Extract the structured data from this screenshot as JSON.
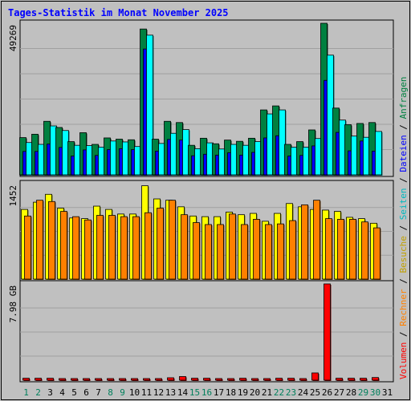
{
  "title": "Tages-Statistik im Monat November 2025",
  "chart_data": [
    {
      "type": "bar",
      "panel": "hits-files-pages",
      "categories": [
        "1",
        "2",
        "3",
        "4",
        "5",
        "6",
        "7",
        "8",
        "9",
        "10",
        "11",
        "12",
        "13",
        "14",
        "15",
        "16",
        "17",
        "18",
        "19",
        "20",
        "21",
        "22",
        "23",
        "24",
        "25",
        "26",
        "27",
        "28",
        "29",
        "30",
        "31"
      ],
      "max_label": "49269",
      "ylim": [
        0,
        49269
      ],
      "series": [
        {
          "name": "Anfragen",
          "color": "#008040",
          "values": [
            12100,
            13200,
            17400,
            15400,
            10800,
            13700,
            9900,
            12000,
            11600,
            11400,
            47400,
            11600,
            17400,
            17000,
            9600,
            11900,
            10100,
            11300,
            10900,
            11900,
            21100,
            22400,
            9900,
            10800,
            14600,
            49269,
            21700,
            16300,
            16700,
            17000,
            null
          ]
        },
        {
          "name": "Dateien",
          "color": "#0000ff",
          "values": [
            7600,
            7600,
            10000,
            8900,
            6100,
            8100,
            6300,
            8200,
            8500,
            8200,
            40900,
            7700,
            11500,
            11300,
            6200,
            6700,
            6400,
            7200,
            6400,
            7300,
            12000,
            12700,
            6100,
            6300,
            9400,
            30700,
            13800,
            7800,
            11000,
            7700,
            null
          ]
        },
        {
          "name": "Seiten",
          "color": "#00ffff",
          "values": [
            10500,
            9900,
            15900,
            14400,
            9600,
            9500,
            9000,
            11000,
            10700,
            9200,
            45400,
            10200,
            13500,
            14700,
            8500,
            10400,
            8400,
            9900,
            9600,
            10800,
            19800,
            21100,
            9000,
            9000,
            11800,
            38900,
            17800,
            12600,
            12200,
            14100,
            null
          ]
        }
      ]
    },
    {
      "type": "bar",
      "panel": "visits-hosts",
      "categories": [
        "1",
        "2",
        "3",
        "4",
        "5",
        "6",
        "7",
        "8",
        "9",
        "10",
        "11",
        "12",
        "13",
        "14",
        "15",
        "16",
        "17",
        "18",
        "19",
        "20",
        "21",
        "22",
        "23",
        "24",
        "25",
        "26",
        "27",
        "28",
        "29",
        "30",
        "31"
      ],
      "max_label": "1452",
      "ylim": [
        0,
        1452
      ],
      "series": [
        {
          "name": "Besuche",
          "color": "#ffff00",
          "values": [
            1060,
            1170,
            1290,
            1080,
            930,
            920,
            1110,
            1060,
            990,
            990,
            1420,
            1220,
            1200,
            1100,
            960,
            950,
            950,
            1020,
            980,
            1000,
            880,
            1000,
            1150,
            1100,
            1060,
            1050,
            1030,
            940,
            920,
            850,
            null
          ]
        },
        {
          "name": "Rechner",
          "color": "#ff8000",
          "values": [
            960,
            1200,
            1180,
            1030,
            950,
            900,
            970,
            970,
            950,
            950,
            1010,
            1080,
            1200,
            980,
            860,
            830,
            830,
            990,
            830,
            910,
            830,
            840,
            890,
            1130,
            1200,
            920,
            910,
            910,
            870,
            780,
            null
          ]
        }
      ]
    },
    {
      "type": "bar",
      "panel": "volume",
      "categories": [
        "1",
        "2",
        "3",
        "4",
        "5",
        "6",
        "7",
        "8",
        "9",
        "10",
        "11",
        "12",
        "13",
        "14",
        "15",
        "16",
        "17",
        "18",
        "19",
        "20",
        "21",
        "22",
        "23",
        "24",
        "25",
        "26",
        "27",
        "28",
        "29",
        "30",
        "31"
      ],
      "max_label": "7.98 GB",
      "ylim": [
        0,
        7.98
      ],
      "series": [
        {
          "name": "Volumen",
          "color": "#ff0000",
          "values": [
            0.16,
            0.16,
            0.16,
            0.1,
            0.1,
            0.1,
            0.1,
            0.1,
            0.1,
            0.1,
            0.1,
            0.1,
            0.2,
            0.3,
            0.16,
            0.16,
            0.1,
            0.1,
            0.16,
            0.1,
            0.1,
            0.16,
            0.16,
            0.1,
            0.6,
            7.98,
            0.16,
            0.16,
            0.16,
            0.22,
            null
          ]
        }
      ]
    }
  ],
  "weekend_days": [
    "1",
    "2",
    "8",
    "9",
    "15",
    "16",
    "22",
    "23",
    "29",
    "30"
  ],
  "colors": {
    "title": "#0000ff",
    "panel_bg": "#c0c0c0",
    "label_default": "#000000",
    "label_weekend": "#00805c",
    "line": "#000000"
  },
  "legend_right": [
    {
      "text": "Volumen",
      "color": "#ff0000"
    },
    {
      "text": " / ",
      "color": "#000000"
    },
    {
      "text": "Rechner",
      "color": "#ff8000"
    },
    {
      "text": " / ",
      "color": "#000000"
    },
    {
      "text": "Besuche",
      "color": "#c0a000"
    },
    {
      "text": " / ",
      "color": "#000000"
    },
    {
      "text": "Seiten",
      "color": "#00b8c0"
    },
    {
      "text": " / ",
      "color": "#000000"
    },
    {
      "text": "Dateien",
      "color": "#0000ff"
    },
    {
      "text": " / ",
      "color": "#000000"
    },
    {
      "text": "Anfragen",
      "color": "#008040"
    }
  ]
}
